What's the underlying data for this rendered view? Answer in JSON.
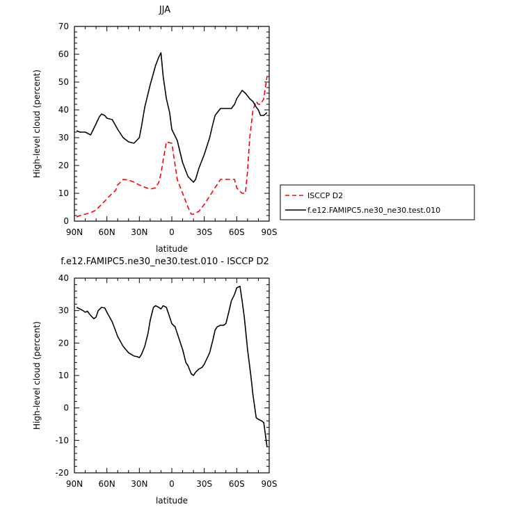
{
  "chart_data": [
    {
      "type": "line",
      "title": "JJA",
      "xlabel": "latitude",
      "ylabel": "High-level cloud (percent)",
      "xlim": [
        90,
        -90
      ],
      "ylim": [
        0,
        70
      ],
      "x_ticks": [
        90,
        60,
        30,
        0,
        -30,
        -60,
        -90
      ],
      "x_tick_labels": [
        "90N",
        "60N",
        "30N",
        "0",
        "30S",
        "60S",
        "90S"
      ],
      "y_ticks": [
        0,
        10,
        20,
        30,
        40,
        50,
        60,
        70
      ],
      "y_tick_labels": [
        "0",
        "10",
        "20",
        "30",
        "40",
        "50",
        "60",
        "70"
      ],
      "legend_position": "right",
      "series": [
        {
          "name": "ISCCP D2",
          "color": "#ff0000",
          "style": "dashed",
          "x": [
            88,
            85,
            80,
            75,
            70,
            65,
            60,
            55,
            52,
            50,
            45,
            40,
            35,
            30,
            25,
            20,
            15,
            12,
            10,
            8,
            5,
            0,
            -5,
            -10,
            -15,
            -18,
            -20,
            -25,
            -30,
            -35,
            -40,
            -45,
            -50,
            -55,
            -58,
            -60,
            -62,
            -65,
            -68,
            -70,
            -72,
            -75,
            -78,
            -80,
            -82,
            -85,
            -88
          ],
          "y": [
            1.5,
            2,
            2.5,
            3,
            4,
            6,
            8,
            10,
            11,
            13,
            15,
            14.8,
            14,
            13,
            12.2,
            11.5,
            12,
            14,
            17,
            22,
            28.5,
            28,
            15,
            10,
            5,
            2.5,
            2.5,
            3.5,
            6,
            9,
            12,
            15,
            15,
            15,
            15,
            12,
            11,
            10,
            10,
            18,
            30,
            40,
            43,
            42,
            42,
            44,
            52
          ]
        },
        {
          "name": "f.e12.FAMIPC5.ne30_ne30.test.010",
          "color": "#000000",
          "style": "solid",
          "x": [
            88,
            85,
            82,
            80,
            75,
            70,
            67,
            65,
            62,
            60,
            55,
            50,
            45,
            40,
            35,
            30,
            28,
            25,
            20,
            15,
            12,
            10,
            8,
            5,
            2,
            0,
            -5,
            -10,
            -15,
            -20,
            -22,
            -25,
            -30,
            -35,
            -38,
            -40,
            -45,
            -50,
            -55,
            -58,
            -60,
            -65,
            -68,
            -70,
            -72,
            -75,
            -78,
            -80,
            -82,
            -85,
            -88
          ],
          "y": [
            32.5,
            32,
            32,
            32,
            31,
            35,
            37.5,
            38.5,
            38,
            37,
            36.5,
            33,
            30,
            28.5,
            28,
            30,
            34,
            41,
            49,
            56,
            59,
            60.5,
            52,
            44,
            39,
            33,
            29,
            21,
            16,
            14,
            15,
            19,
            24,
            30,
            35,
            38,
            40.5,
            40.5,
            40.5,
            42,
            44,
            47,
            46,
            45,
            44,
            43,
            41,
            40,
            38,
            38,
            39
          ]
        }
      ]
    },
    {
      "type": "line",
      "title": "f.e12.FAMIPC5.ne30_ne30.test.010 - ISCCP D2",
      "xlabel": "latitude",
      "ylabel": "High-level cloud (percent)",
      "xlim": [
        90,
        -90
      ],
      "ylim": [
        -20,
        40
      ],
      "x_ticks": [
        90,
        60,
        30,
        0,
        -30,
        -60,
        -90
      ],
      "x_tick_labels": [
        "90N",
        "60N",
        "30N",
        "0",
        "30S",
        "60S",
        "90S"
      ],
      "y_ticks": [
        -20,
        -10,
        0,
        10,
        20,
        30,
        40
      ],
      "y_tick_labels": [
        "-20",
        "-10",
        "0",
        "10",
        "20",
        "30",
        "40"
      ],
      "series": [
        {
          "color": "#000000",
          "style": "solid",
          "x": [
            88,
            85,
            82,
            80,
            78,
            75,
            72,
            70,
            68,
            65,
            62,
            60,
            55,
            50,
            45,
            40,
            35,
            32,
            30,
            28,
            25,
            22,
            20,
            17,
            15,
            12,
            10,
            8,
            5,
            3,
            0,
            -3,
            -5,
            -8,
            -10,
            -13,
            -15,
            -18,
            -20,
            -22,
            -25,
            -28,
            -30,
            -35,
            -38,
            -40,
            -42,
            -45,
            -48,
            -50,
            -53,
            -55,
            -58,
            -60,
            -63,
            -65,
            -67,
            -70,
            -73,
            -75,
            -78,
            -80,
            -83,
            -85,
            -88
          ],
          "y": [
            31,
            30.5,
            30,
            29.5,
            29.8,
            28.5,
            27.5,
            28,
            30,
            31,
            30.8,
            29.5,
            26.5,
            22,
            19,
            17,
            16,
            15.8,
            15.5,
            16.5,
            19,
            23,
            27,
            31,
            31.5,
            31,
            30.5,
            31.5,
            31,
            29,
            26,
            25,
            23,
            20,
            18,
            14,
            13,
            10.5,
            10,
            11,
            12,
            12.5,
            13.5,
            17,
            21,
            24,
            25,
            25.5,
            25.5,
            26,
            30,
            33,
            35,
            37,
            37.5,
            33,
            28,
            18,
            10,
            4,
            -3,
            -3.5,
            -4,
            -4.5,
            -12
          ]
        }
      ]
    }
  ]
}
